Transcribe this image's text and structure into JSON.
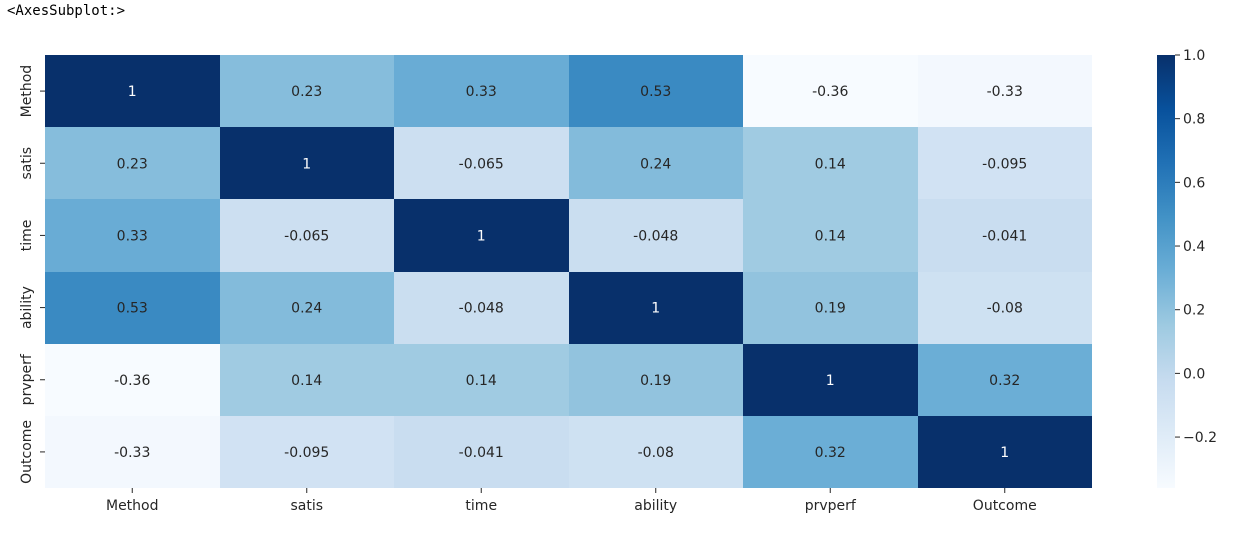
{
  "output_header": "<AxesSubplot:>",
  "colormap": "Blues",
  "colorbar": {
    "ticks": [
      1.0,
      0.8,
      0.6,
      0.4,
      0.2,
      0.0,
      -0.2
    ],
    "tick_labels": [
      "1.0",
      "0.8",
      "0.6",
      "0.4",
      "0.2",
      "0.0",
      "−0.2"
    ]
  },
  "chart_data": {
    "type": "heatmap",
    "title": "",
    "xlabel": "",
    "ylabel": "",
    "row_labels": [
      "Method",
      "satis",
      "time",
      "ability",
      "prvperf",
      "Outcome"
    ],
    "col_labels": [
      "Method",
      "satis",
      "time",
      "ability",
      "prvperf",
      "Outcome"
    ],
    "values": [
      [
        1,
        0.23,
        0.33,
        0.53,
        -0.36,
        -0.33
      ],
      [
        0.23,
        1,
        -0.065,
        0.24,
        0.14,
        -0.095
      ],
      [
        0.33,
        -0.065,
        1,
        -0.048,
        0.14,
        -0.041
      ],
      [
        0.53,
        0.24,
        -0.048,
        1,
        0.19,
        -0.08
      ],
      [
        -0.36,
        0.14,
        0.14,
        0.19,
        1,
        0.32
      ],
      [
        -0.33,
        -0.095,
        -0.041,
        -0.08,
        0.32,
        1
      ]
    ],
    "cell_labels": [
      [
        "1",
        "0.23",
        "0.33",
        "0.53",
        "-0.36",
        "-0.33"
      ],
      [
        "0.23",
        "1",
        "-0.065",
        "0.24",
        "0.14",
        "-0.095"
      ],
      [
        "0.33",
        "-0.065",
        "1",
        "-0.048",
        "0.14",
        "-0.041"
      ],
      [
        "0.53",
        "0.24",
        "-0.048",
        "1",
        "0.19",
        "-0.08"
      ],
      [
        "-0.36",
        "0.14",
        "0.14",
        "0.19",
        "1",
        "0.32"
      ],
      [
        "-0.33",
        "-0.095",
        "-0.041",
        "-0.08",
        "0.32",
        "1"
      ]
    ],
    "vmin": -0.36,
    "vmax": 1.0,
    "annotated": true,
    "grid": false,
    "legend": "colorbar-right"
  }
}
